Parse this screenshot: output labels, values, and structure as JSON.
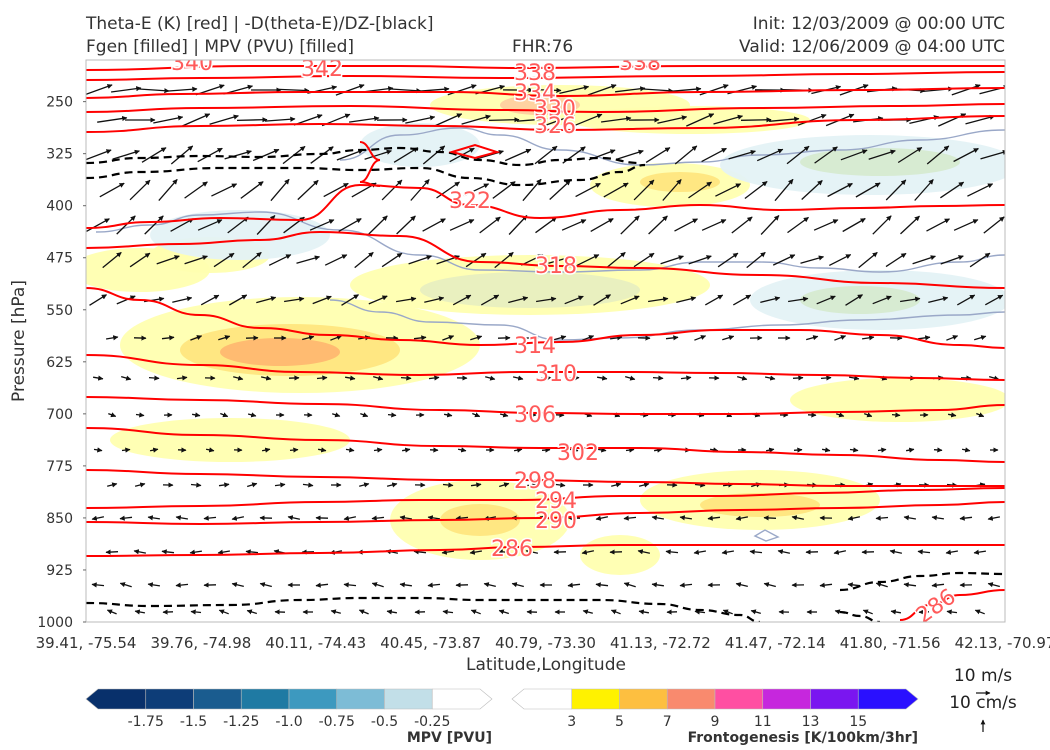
{
  "header": {
    "title_line1": "Theta-E (K) [red] | -D(theta-E)/DZ-[black]",
    "title_line2": "Fgen [filled] | MPV (PVU) [filled]",
    "fhr": "FHR:76",
    "init": "Init: 12/03/2009 @ 00:00 UTC",
    "valid": "Valid: 12/06/2009 @ 04:00 UTC"
  },
  "chart_data": {
    "type": "cross-section",
    "title": "Theta-E (K) [red] | -D(theta-E)/DZ-[black]",
    "xlabel": "Latitude,Longitude",
    "ylabel": "Pressure [hPa]",
    "x_ticks": [
      "39.41, -75.54",
      "39.76, -74.98",
      "40.11, -74.43",
      "40.45, -73.87",
      "40.79, -73.30",
      "41.13, -72.72",
      "41.47, -72.14",
      "41.80, -71.56",
      "42.13, -70.97"
    ],
    "y_ticks": [
      250,
      325,
      400,
      475,
      550,
      625,
      700,
      775,
      850,
      925,
      1000
    ],
    "ylim": [
      1000,
      190
    ],
    "y_scale": "linear-inverted",
    "theta_e_contours": [
      {
        "value": 340,
        "label": "340"
      },
      {
        "value": 342,
        "label": "342"
      },
      {
        "value": 338,
        "label": "338"
      },
      {
        "value": 334,
        "label": "334"
      },
      {
        "value": 330,
        "label": "330"
      },
      {
        "value": 326,
        "label": "326"
      },
      {
        "value": 322,
        "label": "322"
      },
      {
        "value": 318,
        "label": "318"
      },
      {
        "value": 314,
        "label": "314"
      },
      {
        "value": 310,
        "label": "310"
      },
      {
        "value": 306,
        "label": "306"
      },
      {
        "value": 302,
        "label": "302"
      },
      {
        "value": 298,
        "label": "298"
      },
      {
        "value": 294,
        "label": "294"
      },
      {
        "value": 290,
        "label": "290"
      },
      {
        "value": 286,
        "label": "286"
      },
      {
        "value": 286,
        "label": "286"
      }
    ],
    "wind_reference": {
      "horizontal": "10 m/s",
      "vertical": "10 cm/s"
    }
  },
  "colorbars": {
    "mpv": {
      "label": "MPV [PVU]",
      "ticks": [
        "-1.75",
        "-1.5",
        "-1.25",
        "-1.0",
        "-0.75",
        "-0.5",
        "-0.25"
      ],
      "colors": [
        "#08306b",
        "#0d3d78",
        "#1a5c8f",
        "#1f7aa3",
        "#3d99bf",
        "#7dbcd6",
        "#c2dfe8",
        "#ffffff"
      ]
    },
    "fgen": {
      "label": "Frontogenesis [K/100km/3hr]",
      "ticks": [
        "3",
        "5",
        "7",
        "9",
        "11",
        "13",
        "15"
      ],
      "colors": [
        "#ffffff",
        "#fff200",
        "#fdbf40",
        "#f98a6e",
        "#ff4fa2",
        "#c627dd",
        "#7a16f0",
        "#2a10ff"
      ]
    }
  },
  "colors": {
    "theta_e": "#ff0000",
    "gradient": "#000000",
    "fgen_light": "#ffffa0",
    "mpv_light": "#e0f0f4"
  }
}
